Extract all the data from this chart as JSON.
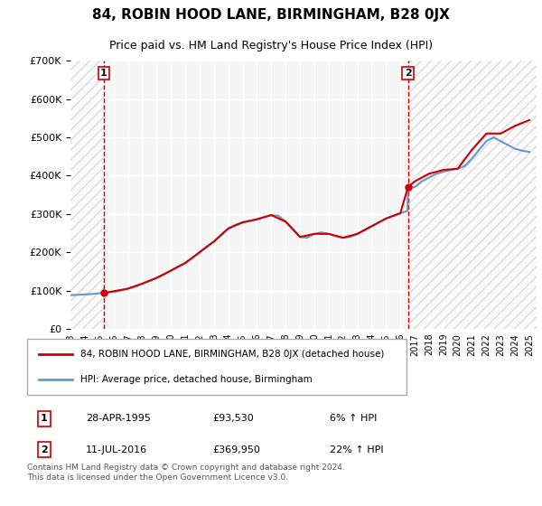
{
  "title": "84, ROBIN HOOD LANE, BIRMINGHAM, B28 0JX",
  "subtitle": "Price paid vs. HM Land Registry's House Price Index (HPI)",
  "ylabel_ticks": [
    "£0",
    "£100K",
    "£200K",
    "£300K",
    "£400K",
    "£500K",
    "£600K",
    "£700K"
  ],
  "ylim": [
    0,
    700000
  ],
  "xlim_start": 1993.0,
  "xlim_end": 2025.5,
  "hatch_region_end": 1996.0,
  "hatch_region_start": 2016.5,
  "sale1_x": 1995.32,
  "sale1_y": 93530,
  "sale1_label": "1",
  "sale1_date": "28-APR-1995",
  "sale1_price": "£93,530",
  "sale1_hpi": "6% ↑ HPI",
  "sale2_x": 2016.53,
  "sale2_y": 369950,
  "sale2_label": "2",
  "sale2_date": "11-JUL-2016",
  "sale2_price": "£369,950",
  "sale2_hpi": "22% ↑ HPI",
  "line1_color": "#cc0000",
  "line2_color": "#6699cc",
  "vline_color": "#cc0000",
  "hatch_color": "#dddddd",
  "background_plot": "#f5f5f5",
  "grid_color": "#ffffff",
  "legend_label1": "84, ROBIN HOOD LANE, BIRMINGHAM, B28 0JX (detached house)",
  "legend_label2": "HPI: Average price, detached house, Birmingham",
  "footer": "Contains HM Land Registry data © Crown copyright and database right 2024.\nThis data is licensed under the Open Government Licence v3.0.",
  "hpi_x": [
    1993,
    1993.5,
    1994,
    1994.5,
    1995,
    1995.32,
    1995.5,
    1996,
    1996.5,
    1997,
    1997.5,
    1998,
    1998.5,
    1999,
    1999.5,
    2000,
    2000.5,
    2001,
    2001.5,
    2002,
    2002.5,
    2003,
    2003.5,
    2004,
    2004.5,
    2005,
    2005.5,
    2006,
    2006.5,
    2007,
    2007.5,
    2008,
    2008.5,
    2009,
    2009.5,
    2010,
    2010.5,
    2011,
    2011.5,
    2012,
    2012.5,
    2013,
    2013.5,
    2014,
    2014.5,
    2015,
    2015.5,
    2016,
    2016.5,
    2016.53,
    2017,
    2017.5,
    2018,
    2018.5,
    2019,
    2019.5,
    2020,
    2020.5,
    2021,
    2021.5,
    2022,
    2022.5,
    2023,
    2023.5,
    2024,
    2024.5,
    2025
  ],
  "hpi_y": [
    88000,
    89000,
    90000,
    91000,
    93000,
    93530,
    95000,
    97000,
    100000,
    105000,
    110000,
    118000,
    125000,
    133000,
    142000,
    152000,
    163000,
    172000,
    185000,
    200000,
    215000,
    228000,
    245000,
    262000,
    272000,
    278000,
    282000,
    286000,
    292000,
    297000,
    295000,
    280000,
    262000,
    240000,
    238000,
    248000,
    252000,
    248000,
    242000,
    238000,
    240000,
    248000,
    258000,
    268000,
    278000,
    288000,
    295000,
    302000,
    308000,
    369950,
    370000,
    385000,
    395000,
    405000,
    410000,
    415000,
    418000,
    425000,
    445000,
    468000,
    490000,
    500000,
    490000,
    480000,
    470000,
    465000,
    462000
  ],
  "price_x": [
    1995.32,
    1997,
    1998,
    1999,
    2000,
    2001,
    2002,
    2003,
    2004,
    2005,
    2006,
    2007,
    2008,
    2009,
    2010,
    2011,
    2012,
    2013,
    2014,
    2015,
    2016,
    2016.53,
    2017,
    2018,
    2019,
    2020,
    2021,
    2022,
    2023,
    2024,
    2025
  ],
  "price_y": [
    93530,
    105000,
    118000,
    133000,
    152000,
    172000,
    200000,
    228000,
    262000,
    278000,
    286000,
    297000,
    280000,
    240000,
    248000,
    248000,
    238000,
    248000,
    268000,
    288000,
    302000,
    369950,
    385000,
    405000,
    415000,
    418000,
    468000,
    510000,
    510000,
    530000,
    545000
  ]
}
